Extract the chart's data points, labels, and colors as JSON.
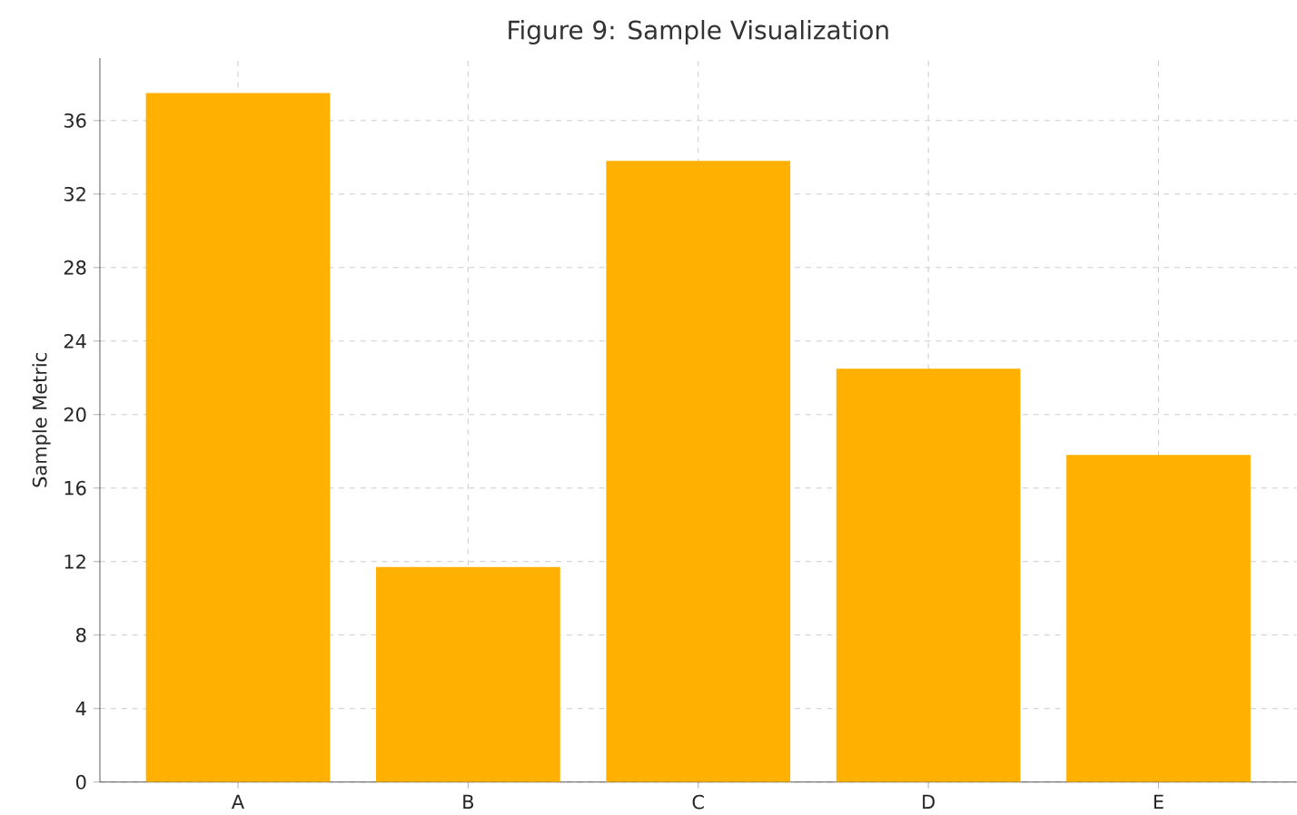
{
  "chart_data": {
    "type": "bar",
    "title": "Figure 9: Sample Visualization",
    "ylabel": "Sample Metric",
    "categories": [
      "A",
      "B",
      "C",
      "D",
      "E"
    ],
    "values": [
      37.5,
      11.7,
      33.8,
      22.5,
      17.8
    ],
    "color": "#ffb000",
    "ylim": [
      0,
      39.4
    ],
    "yticks": [
      0,
      4,
      8,
      12,
      16,
      20,
      24,
      28,
      32,
      36
    ],
    "grid": true
  }
}
